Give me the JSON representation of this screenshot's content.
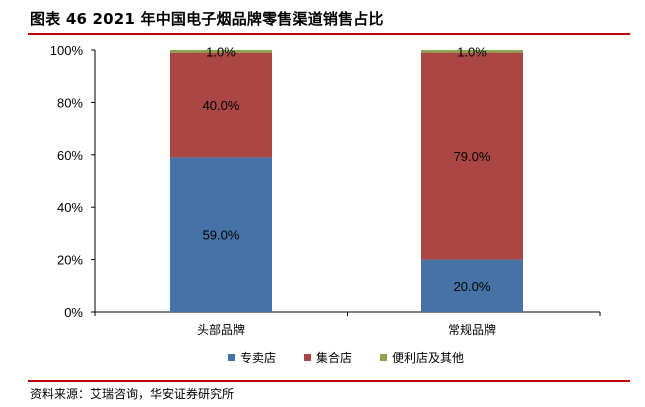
{
  "title": "图表 46 2021 年中国电子烟品牌零售渠道销售占比",
  "source": "资料来源：艾瑞咨询，华安证券研究所",
  "chart_data": {
    "type": "stacked-bar",
    "categories": [
      "头部品牌",
      "常规品牌"
    ],
    "series": [
      {
        "name": "专卖店",
        "values": [
          59.0,
          20.0
        ],
        "labels": [
          "59.0%",
          "20.0%"
        ],
        "color": "#4572a7"
      },
      {
        "name": "集合店",
        "values": [
          40.0,
          79.0
        ],
        "labels": [
          "40.0%",
          "79.0%"
        ],
        "color": "#aa4643"
      },
      {
        "name": "便利店及其他",
        "values": [
          1.0,
          1.0
        ],
        "labels": [
          "1.0%",
          "1.0%"
        ],
        "color": "#89a54e"
      }
    ],
    "y_ticks": [
      "0%",
      "20%",
      "40%",
      "60%",
      "80%",
      "100%"
    ],
    "ylim": [
      0,
      100
    ],
    "legend_position": "bottom",
    "grid": false
  }
}
